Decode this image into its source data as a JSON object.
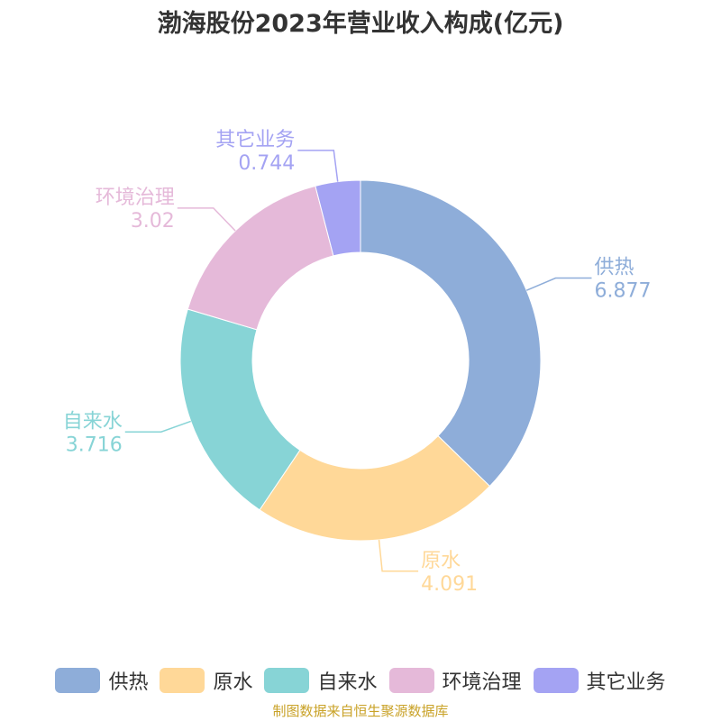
{
  "chart_data": {
    "type": "pie",
    "variant": "donut",
    "title": "渤海股份2023年营业收入构成(亿元)",
    "categories": [
      "供热",
      "原水",
      "自来水",
      "环境治理",
      "其它业务"
    ],
    "values": [
      6.877,
      4.091,
      3.716,
      3.02,
      0.744
    ],
    "value_labels": [
      "6.877",
      "4.091",
      "3.716",
      "3.02",
      "0.744"
    ],
    "colors": [
      "#8eadd9",
      "#ffd898",
      "#87d4d6",
      "#e5b9d9",
      "#a4a3f3"
    ],
    "start_at": "top",
    "direction": "clockwise",
    "legend_position": "bottom"
  },
  "source_note": "制图数据来自恒生聚源数据库"
}
